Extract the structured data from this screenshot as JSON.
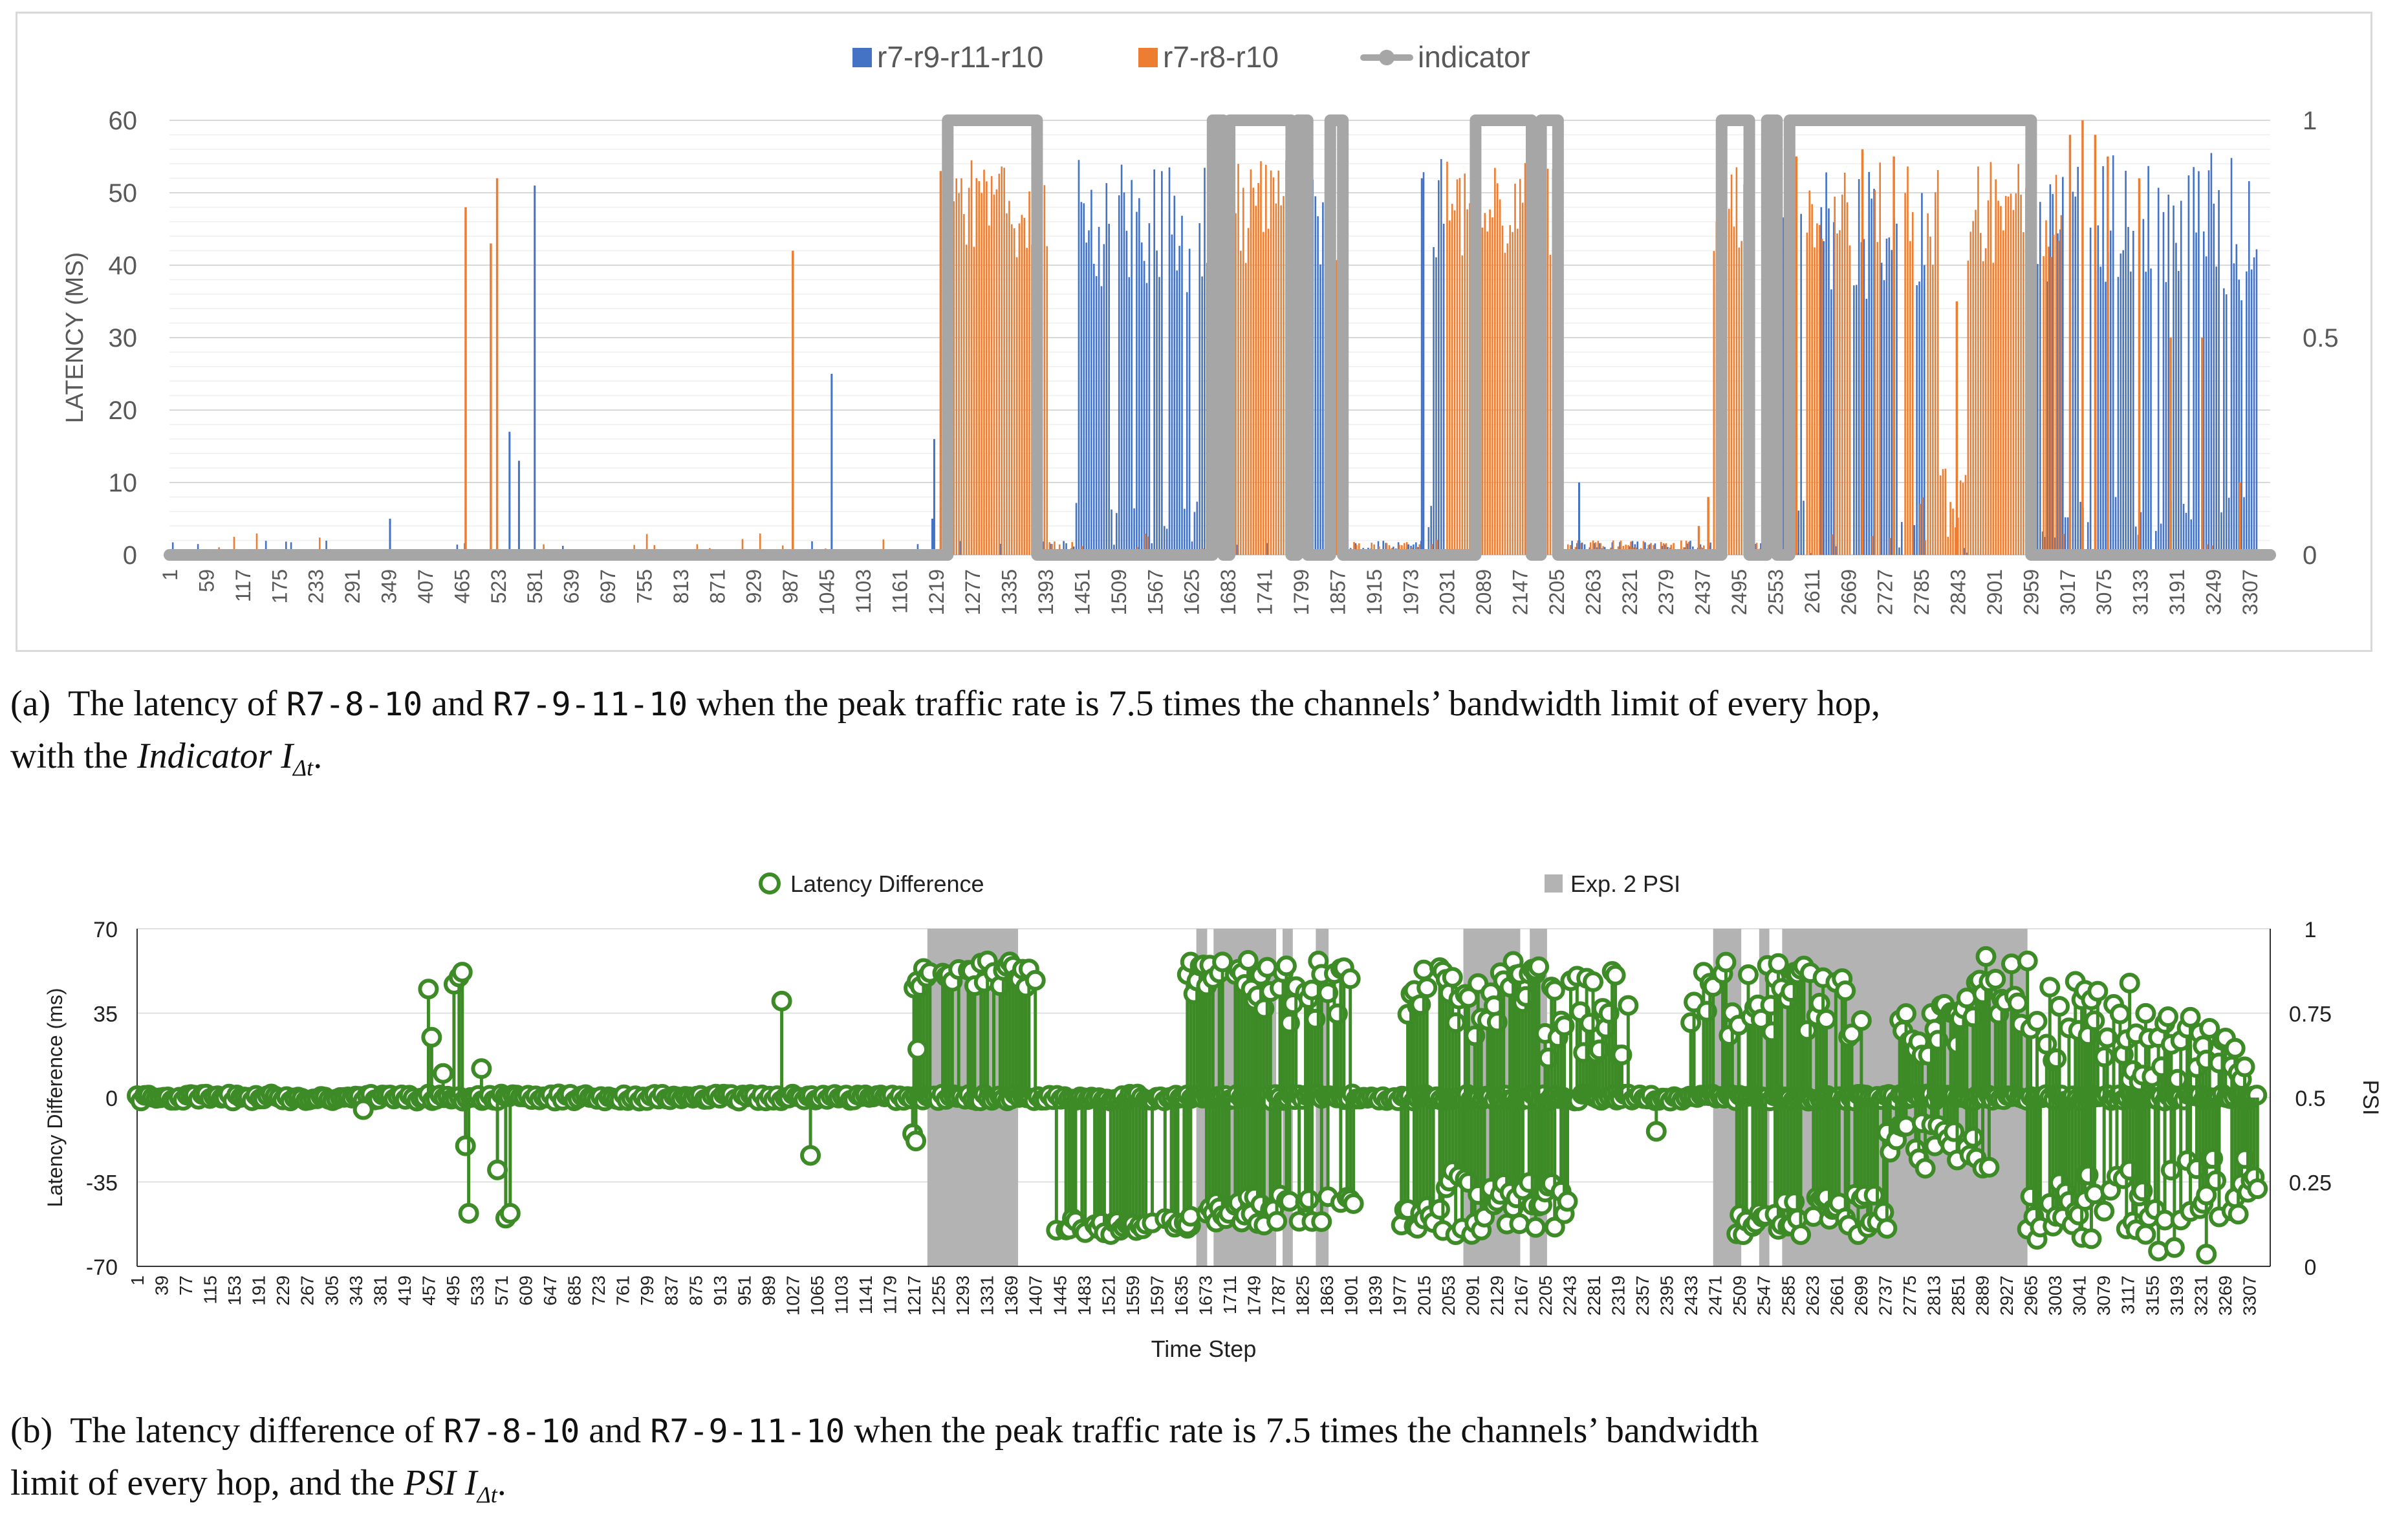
{
  "chart_data": [
    {
      "id": "a",
      "type": "bar",
      "title": "",
      "ylabel": "LATENCY (MS)",
      "ylim": [
        0,
        60
      ],
      "y_ticks": [
        "0",
        "10",
        "20",
        "30",
        "40",
        "50",
        "60"
      ],
      "y2_ticks": [
        "0",
        "0.5",
        "1"
      ],
      "x_tick_labels": [
        "1",
        "59",
        "117",
        "175",
        "233",
        "291",
        "349",
        "407",
        "465",
        "523",
        "581",
        "639",
        "697",
        "755",
        "813",
        "871",
        "929",
        "987",
        "1045",
        "1103",
        "1161",
        "1219",
        "1277",
        "1335",
        "1393",
        "1451",
        "1509",
        "1567",
        "1625",
        "1683",
        "1741",
        "1799",
        "1857",
        "1915",
        "1973",
        "2031",
        "2089",
        "2147",
        "2205",
        "2263",
        "2321",
        "2379",
        "2437",
        "2495",
        "2553",
        "2611",
        "2669",
        "2727",
        "2785",
        "2843",
        "2901",
        "2959",
        "3017",
        "3075",
        "3133",
        "3191",
        "3249",
        "3307"
      ],
      "x_range": [
        1,
        3340
      ],
      "legend": [
        "r7-r9-r11-r10",
        "r7-r8-r10",
        "indicator"
      ],
      "colors": {
        "blue": "#4472c4",
        "orange": "#ed7d31",
        "indicator": "#a6a6a6"
      },
      "indicator_on_intervals": [
        [
          1238,
          1380
        ],
        [
          1659,
          1676
        ],
        [
          1686,
          1784
        ],
        [
          1794,
          1810
        ],
        [
          1846,
          1866
        ],
        [
          2077,
          2166
        ],
        [
          2181,
          2208
        ],
        [
          2468,
          2512
        ],
        [
          2540,
          2556
        ],
        [
          2576,
          2960
        ]
      ],
      "orange_high_intervals": [
        [
          1244,
          1370
        ],
        [
          1378,
          1395
        ],
        [
          1662,
          1673
        ],
        [
          1686,
          1790
        ],
        [
          1846,
          1864
        ],
        [
          2028,
          2165
        ],
        [
          2174,
          2212
        ],
        [
          2450,
          2515
        ],
        [
          2535,
          2557
        ],
        [
          2600,
          2625
        ],
        [
          2645,
          2670
        ],
        [
          2708,
          2720
        ],
        [
          2755,
          2770
        ],
        [
          2790,
          2812
        ],
        [
          2855,
          2960
        ],
        [
          2975,
          3005
        ]
      ],
      "orange_spikes": [
        [
          470,
          48
        ],
        [
          510,
          43
        ],
        [
          520,
          52
        ],
        [
          990,
          42
        ],
        [
          1225,
          53
        ],
        [
          1232,
          55
        ],
        [
          1242,
          55
        ],
        [
          2430,
          4
        ],
        [
          2445,
          8
        ],
        [
          2585,
          55
        ],
        [
          2690,
          56
        ],
        [
          2740,
          55
        ],
        [
          2840,
          35
        ],
        [
          3020,
          58
        ],
        [
          3040,
          60
        ],
        [
          3060,
          58
        ],
        [
          3080,
          55
        ],
        [
          3130,
          52
        ],
        [
          3180,
          30
        ],
        [
          3230,
          30
        ],
        [
          3290,
          10
        ]
      ],
      "blue_high_intervals": [
        [
          1438,
          1656
        ],
        [
          1812,
          1840
        ],
        [
          1990,
          2028
        ],
        [
          2560,
          2600
        ],
        [
          2625,
          2650
        ],
        [
          2675,
          2710
        ],
        [
          2720,
          2755
        ],
        [
          2770,
          2790
        ],
        [
          2960,
          3320
        ]
      ],
      "blue_spikes": [
        [
          350,
          5
        ],
        [
          540,
          17
        ],
        [
          555,
          13
        ],
        [
          580,
          51
        ],
        [
          1052,
          25
        ],
        [
          1212,
          5
        ],
        [
          1215,
          16
        ],
        [
          1870,
          53
        ],
        [
          1990,
          52
        ],
        [
          2212,
          52
        ],
        [
          2240,
          10
        ],
        [
          2560,
          40
        ],
        [
          2575,
          46
        ]
      ]
    },
    {
      "id": "b",
      "type": "scatter",
      "title": "",
      "xlabel": "Time Step",
      "ylabel": "Latency Difference (ms)",
      "y2label": "PSI",
      "ylim": [
        -70,
        70
      ],
      "y_ticks": [
        "-70",
        "-35",
        "0",
        "35",
        "70"
      ],
      "y2_ticks": [
        "0",
        "0.25",
        "0.5",
        "0.75",
        "1"
      ],
      "x_tick_labels": [
        "1",
        "39",
        "77",
        "115",
        "153",
        "191",
        "229",
        "267",
        "305",
        "343",
        "381",
        "419",
        "457",
        "495",
        "533",
        "571",
        "609",
        "647",
        "685",
        "723",
        "761",
        "799",
        "837",
        "875",
        "913",
        "951",
        "989",
        "1027",
        "1065",
        "1103",
        "1141",
        "1179",
        "1217",
        "1255",
        "1293",
        "1331",
        "1369",
        "1407",
        "1445",
        "1483",
        "1521",
        "1559",
        "1597",
        "1635",
        "1673",
        "1711",
        "1749",
        "1787",
        "1825",
        "1863",
        "1901",
        "1939",
        "1977",
        "2015",
        "2053",
        "2091",
        "2129",
        "2167",
        "2205",
        "2243",
        "2281",
        "2319",
        "2357",
        "2395",
        "2433",
        "2471",
        "2509",
        "2547",
        "2585",
        "2623",
        "2661",
        "2699",
        "2737",
        "2775",
        "2813",
        "2851",
        "2889",
        "2927",
        "2965",
        "3003",
        "3041",
        "3079",
        "3117",
        "3155",
        "3193",
        "3231",
        "3269",
        "3307"
      ],
      "x_range": [
        1,
        3340
      ],
      "legend": [
        "Latency Difference",
        "Exp. 2 PSI"
      ],
      "colors": {
        "series": "#3d8b26",
        "psi": "#b3b3b3"
      },
      "psi_intervals": [
        [
          1238,
          1380
        ],
        [
          1659,
          1676
        ],
        [
          1686,
          1784
        ],
        [
          1794,
          1810
        ],
        [
          1846,
          1866
        ],
        [
          2077,
          2166
        ],
        [
          2181,
          2208
        ],
        [
          2468,
          2512
        ],
        [
          2540,
          2556
        ],
        [
          2576,
          2960
        ]
      ],
      "positive_bands": [
        [
          1217,
          1415,
          45,
          57
        ],
        [
          1635,
          1730,
          42,
          57
        ],
        [
          1730,
          1905,
          30,
          57
        ],
        [
          1990,
          2020,
          30,
          55
        ],
        [
          2040,
          2190,
          25,
          57
        ],
        [
          2190,
          2335,
          15,
          55
        ],
        [
          2433,
          2560,
          20,
          57
        ],
        [
          2560,
          2700,
          25,
          57
        ],
        [
          2760,
          2850,
          15,
          40
        ],
        [
          2850,
          2990,
          28,
          60
        ],
        [
          2990,
          3120,
          15,
          50
        ],
        [
          3120,
          3300,
          5,
          35
        ]
      ],
      "negative_bands": [
        [
          1440,
          1650,
          -50,
          -57
        ],
        [
          1645,
          1690,
          -45,
          -55
        ],
        [
          1690,
          1910,
          -40,
          -53
        ],
        [
          1975,
          2040,
          -45,
          -57
        ],
        [
          2040,
          2140,
          -30,
          -57
        ],
        [
          2140,
          2240,
          -35,
          -55
        ],
        [
          2500,
          2740,
          -40,
          -57
        ],
        [
          2740,
          2900,
          -10,
          -30
        ],
        [
          2960,
          3050,
          -35,
          -60
        ],
        [
          3050,
          3240,
          -25,
          -65
        ],
        [
          3240,
          3320,
          -20,
          -50
        ]
      ],
      "isolated_points": [
        [
          457,
          45
        ],
        [
          462,
          25
        ],
        [
          480,
          10
        ],
        [
          497,
          47
        ],
        [
          505,
          50
        ],
        [
          510,
          52
        ],
        [
          515,
          -20
        ],
        [
          520,
          -48
        ],
        [
          540,
          12
        ],
        [
          565,
          -30
        ],
        [
          578,
          -50
        ],
        [
          585,
          -48
        ],
        [
          1010,
          40
        ],
        [
          1055,
          -24
        ],
        [
          355,
          -5
        ],
        [
          1215,
          -15
        ],
        [
          1220,
          -18
        ],
        [
          1223,
          20
        ],
        [
          2379,
          -14
        ]
      ]
    }
  ],
  "captions": {
    "a": {
      "label": "(a)",
      "t1": "The latency of ",
      "m1": "R7-8-10",
      "t2": " and ",
      "m2": "R7-9-11-10",
      "t3": " when the peak traffic rate is 7.5 times the channels’ bandwidth limit of every hop,",
      "t4": "with the ",
      "italic": "Indicator I",
      "sub": "Δt",
      "t5": "."
    },
    "b": {
      "label": "(b)",
      "t1": "The latency difference of ",
      "m1": "R7-8-10",
      "t2": " and ",
      "m2": "R7-9-11-10",
      "t3": " when the peak traffic rate is 7.5 times the channels’ bandwidth",
      "t4": "limit of every hop, and the ",
      "italic": "PSI I",
      "sub": "Δt",
      "t5": "."
    }
  }
}
